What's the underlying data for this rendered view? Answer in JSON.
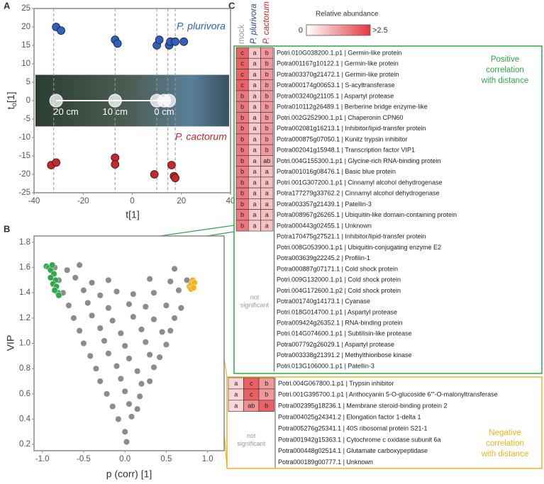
{
  "panel_labels": [
    "A",
    "B",
    "C"
  ],
  "chart_data": [
    {
      "type": "scatter",
      "x_label": "t[1]",
      "y_label": {
        "base": "t",
        "sub": "o",
        "tail": "[1]"
      },
      "xlim": [
        -40,
        40
      ],
      "xticks": [
        -40,
        -20,
        0,
        20,
        40
      ],
      "ylim": [
        -25,
        25
      ],
      "yticks": [
        -25,
        -20,
        -15,
        -10,
        -5,
        0,
        5,
        10,
        15,
        20,
        25
      ],
      "vlines": [
        -32,
        -7,
        10,
        14.5,
        17.5
      ],
      "annotations": [
        "20 cm",
        "10 cm",
        "0 cm"
      ],
      "series": [
        {
          "name": "P. plurivora",
          "color": "#2f5fbf",
          "x": [
            -31,
            -29,
            -7,
            -6,
            10,
            11,
            15,
            15.5,
            17.5,
            21
          ],
          "y": [
            20,
            19,
            16.5,
            15.5,
            15,
            16.5,
            15,
            16,
            16,
            16
          ]
        },
        {
          "name": "P. cactorum",
          "color": "#c8262b",
          "x": [
            -33,
            -31,
            -7,
            -7,
            9,
            16,
            17,
            17.5
          ],
          "y": [
            -17.5,
            -16.8,
            -15.5,
            -17.3,
            -20,
            -17.5,
            -20.5,
            -21
          ]
        }
      ]
    },
    {
      "type": "scatter",
      "x_label": "p (corr) [1]",
      "y_label": "VIP",
      "xlim": [
        -1.1,
        1.2
      ],
      "xticks": [
        {
          "value": -1,
          "label": "-1.0"
        },
        -0.5,
        {
          "value": 0,
          "label": "0.0"
        },
        0.5,
        {
          "value": 1,
          "label": "1.0"
        }
      ],
      "ylim": [
        0.15,
        1.85
      ],
      "yticks": [
        0.2,
        0.4,
        0.6,
        0.8,
        {
          "value": 1,
          "label": "1.0"
        },
        1.2,
        1.4,
        1.6,
        1.8
      ],
      "series": [
        {
          "color": "#8c8c8c",
          "x": [
            -0.85,
            -0.7,
            -0.55,
            0.6,
            -0.8,
            -0.6,
            -0.4,
            -0.2,
            0.3,
            0.55,
            0.75,
            -0.75,
            -0.5,
            -0.3,
            -0.1,
            0.1,
            0.35,
            0.65,
            -0.68,
            -0.45,
            -0.2,
            0.05,
            0.25,
            0.5,
            0.68,
            -0.62,
            -0.4,
            -0.15,
            0.1,
            0.35,
            0.6,
            -0.55,
            -0.3,
            -0.05,
            0.2,
            0.45,
            0.55,
            -0.5,
            -0.25,
            0,
            0.25,
            0.5,
            -0.42,
            -0.2,
            0.05,
            0.3,
            0.42,
            -0.35,
            -0.1,
            0.15,
            0.35,
            -0.3,
            -0.05,
            0.2,
            0.3,
            -0.22,
            0,
            0.18,
            -0.15,
            0.05,
            0.15,
            -0.08,
            0.08,
            0,
            0.02
          ],
          "y": [
            1.6,
            1.58,
            1.62,
            1.59,
            1.5,
            1.52,
            1.48,
            1.5,
            1.51,
            1.49,
            1.5,
            1.4,
            1.42,
            1.38,
            1.41,
            1.39,
            1.4,
            1.42,
            1.3,
            1.32,
            1.28,
            1.31,
            1.29,
            1.3,
            1.28,
            1.2,
            1.22,
            1.18,
            1.21,
            1.19,
            1.2,
            1.1,
            1.12,
            1.08,
            1.11,
            1.09,
            1.1,
            1.0,
            1.02,
            0.98,
            1.01,
            0.99,
            0.9,
            0.92,
            0.88,
            0.91,
            0.89,
            0.8,
            0.82,
            0.78,
            0.81,
            0.7,
            0.72,
            0.68,
            0.7,
            0.6,
            0.62,
            0.58,
            0.5,
            0.52,
            0.48,
            0.4,
            0.42,
            0.3,
            0.22
          ]
        },
        {
          "color": "#2ea84a",
          "x": [
            -0.95,
            -0.92,
            -0.9,
            -0.88,
            -0.86,
            -0.84,
            -0.9,
            -0.87,
            -0.83,
            -0.81,
            -0.85,
            -0.8
          ],
          "y": [
            1.61,
            1.6,
            1.58,
            1.62,
            1.55,
            1.5,
            1.52,
            1.47,
            1.45,
            1.4,
            1.42,
            1.38
          ]
        },
        {
          "color": "#f2b31c",
          "x": [
            0.78,
            0.8,
            0.82,
            0.84,
            0.8,
            0.83
          ],
          "y": [
            1.45,
            1.47,
            1.5,
            1.48,
            1.43,
            1.44
          ]
        }
      ]
    }
  ],
  "heatmap": {
    "columns": [
      {
        "label": "mock",
        "color": "#999999",
        "italic": false
      },
      {
        "label": "P. plurivora",
        "color": "#2a3f8f",
        "italic": true
      },
      {
        "label": "P. cactorum",
        "color": "#c8262b",
        "italic": true
      }
    ],
    "scale": {
      "title": "Relative abundance",
      "min": 0,
      "max": {
        "value": 2.5,
        "label": ">2.5"
      },
      "color": "#e2393f"
    },
    "not_significant": "not significant",
    "groups": [
      {
        "label": [
          "Positive",
          "correlation",
          "with distance"
        ],
        "color": "#2ea84a",
        "rows": [
          {
            "gene": "Potri.010G038200.1.p1 | Germin-like protein",
            "letters": [
              "c",
              "a",
              "b"
            ],
            "values": [
              2.0,
              0.7,
              1.3
            ]
          },
          {
            "gene": "Potra001167g10122.1 | Germin-like protein",
            "letters": [
              "c",
              "a",
              "b"
            ],
            "values": [
              2.0,
              0.7,
              1.3
            ]
          },
          {
            "gene": "Potra003370g21472.1 | Germin-like protein",
            "letters": [
              "c",
              "a",
              "b"
            ],
            "values": [
              2.0,
              0.7,
              1.3
            ]
          },
          {
            "gene": "Potra000174g00653.1 | S-acyltransferase",
            "letters": [
              "c",
              "a",
              "b"
            ],
            "values": [
              2.0,
              0.7,
              1.3
            ]
          },
          {
            "gene": "Potra003240g21105.1 | Aspartyl protease",
            "letters": [
              "b",
              "a",
              "b"
            ],
            "values": [
              1.7,
              0.7,
              1.3
            ]
          },
          {
            "gene": "Potra010112g26489.1 | Berberine bridge enzyme-like",
            "letters": [
              "b",
              "a",
              "b"
            ],
            "values": [
              1.7,
              0.7,
              1.3
            ]
          },
          {
            "gene": "Potri.002G252900.1.p1 | Chaperonin CPN60",
            "letters": [
              "b",
              "a",
              "b"
            ],
            "values": [
              1.7,
              0.7,
              1.3
            ]
          },
          {
            "gene": "Potra002081g16213.1 | Inhibitor/lipid-transfer protein",
            "letters": [
              "b",
              "a",
              "b"
            ],
            "values": [
              1.7,
              0.7,
              1.3
            ]
          },
          {
            "gene": "Potra000875g07050.1 | Kunitz trypsin inhibitor",
            "letters": [
              "b",
              "a",
              "b"
            ],
            "values": [
              1.7,
              0.7,
              1.3
            ]
          },
          {
            "gene": "Potra002041g15948.1 | Transcription factor VIP1",
            "letters": [
              "b",
              "a",
              "b"
            ],
            "values": [
              1.7,
              0.7,
              1.3
            ]
          },
          {
            "gene": "Potri.004G155300.1.p1 | Glycine-rich RNA-binding protein",
            "letters": [
              "b",
              "a",
              "ab"
            ],
            "values": [
              1.7,
              0.7,
              1.0
            ]
          },
          {
            "gene": "Potra001016g08476.1 | Basic blue protein",
            "letters": [
              "b",
              "a",
              "a"
            ],
            "values": [
              1.7,
              0.7,
              0.8
            ]
          },
          {
            "gene": "Potri.001G307200.1.p1 | Cinnamyl alcohol dehydrogenase",
            "letters": [
              "b",
              "a",
              "a"
            ],
            "values": [
              1.7,
              0.7,
              0.8
            ]
          },
          {
            "gene": "Potra177279g33762.2 | Cinnamyl alcohol dehydrogenase",
            "letters": [
              "b",
              "a",
              "a"
            ],
            "values": [
              1.7,
              0.7,
              0.8
            ]
          },
          {
            "gene": "Potra003357g21439.1 | Patellin-3",
            "letters": [
              "b",
              "a",
              "a"
            ],
            "values": [
              1.7,
              0.7,
              0.8
            ]
          },
          {
            "gene": "Potra008967g26265.1 | Ubiquitin-like domain-containing protein",
            "letters": [
              "b",
              "a",
              "a"
            ],
            "values": [
              1.7,
              0.7,
              0.8
            ]
          },
          {
            "gene": "Potra000443g02455.1 | Unknown",
            "letters": [
              "b",
              "a",
              "a"
            ],
            "values": [
              1.7,
              0.7,
              0.8
            ]
          },
          {
            "gene": "Potra170475g27521.1 | Inhibitor/lipid-transfer protein"
          },
          {
            "gene": "Potri.008G053900.1.p1 | Ubiquitin-conjugating enzyme E2"
          },
          {
            "gene": "Potra003639g22245.2 | Profilin-1"
          },
          {
            "gene": "Potra000887g07171.1 | Cold shock protein"
          },
          {
            "gene": "Potri.009G132000.1.p1 | Cold shock protein"
          },
          {
            "gene": "Potri.004G172600.1.p2 | Cold shock protein"
          },
          {
            "gene": "Potra001740g14173.1 | Cyanase"
          },
          {
            "gene": "Potri.018G014700.1.p1 | Aspartyl protease"
          },
          {
            "gene": "Potra009424g26352.1 | RNA-binding protein"
          },
          {
            "gene": "Potri.014G074600.1.p1 | Subtilisin-like protease"
          },
          {
            "gene": "Potra007792g26029.1 | Aspartyl protease"
          },
          {
            "gene": "Potra003338g21391.2 | Methylthioribose kinase"
          },
          {
            "gene": "Potri.013G106000.1.p1 | Patellin-3"
          }
        ]
      },
      {
        "label": [
          "Negative",
          "correlation",
          "with distance"
        ],
        "color": "#f2b31c",
        "rows": [
          {
            "gene": "Potri.004G067800.1.p1 | Trypsin inhibitor",
            "letters": [
              "a",
              "c",
              "b"
            ],
            "values": [
              0.5,
              2.0,
              1.3
            ]
          },
          {
            "gene": "Potri.001G395700.1.p1 | Anthocyanin 5-O-glucoside 6'''-O-malonyltransferase",
            "letters": [
              "a",
              "c",
              "b"
            ],
            "values": [
              0.5,
              2.0,
              1.3
            ]
          },
          {
            "gene": "Potra002395g18236.1 | Membrane steroid-binding protein 2",
            "letters": [
              "a",
              "ab",
              "b"
            ],
            "values": [
              0.5,
              1.4,
              2.0
            ]
          },
          {
            "gene": "Potra004025g24341.2 | Elongation factor 1-delta 1"
          },
          {
            "gene": "Potra005276g25341.1 | 40S ribosomal protein S21-1"
          },
          {
            "gene": "Potra001942g15363.1 | Cytochrome c oxidase subunit 6a"
          },
          {
            "gene": "Potra000448g02514.1 | Glutamate carboxypeptidase"
          },
          {
            "gene": "Potra000189g00777.1 | Unknown"
          }
        ]
      }
    ]
  }
}
